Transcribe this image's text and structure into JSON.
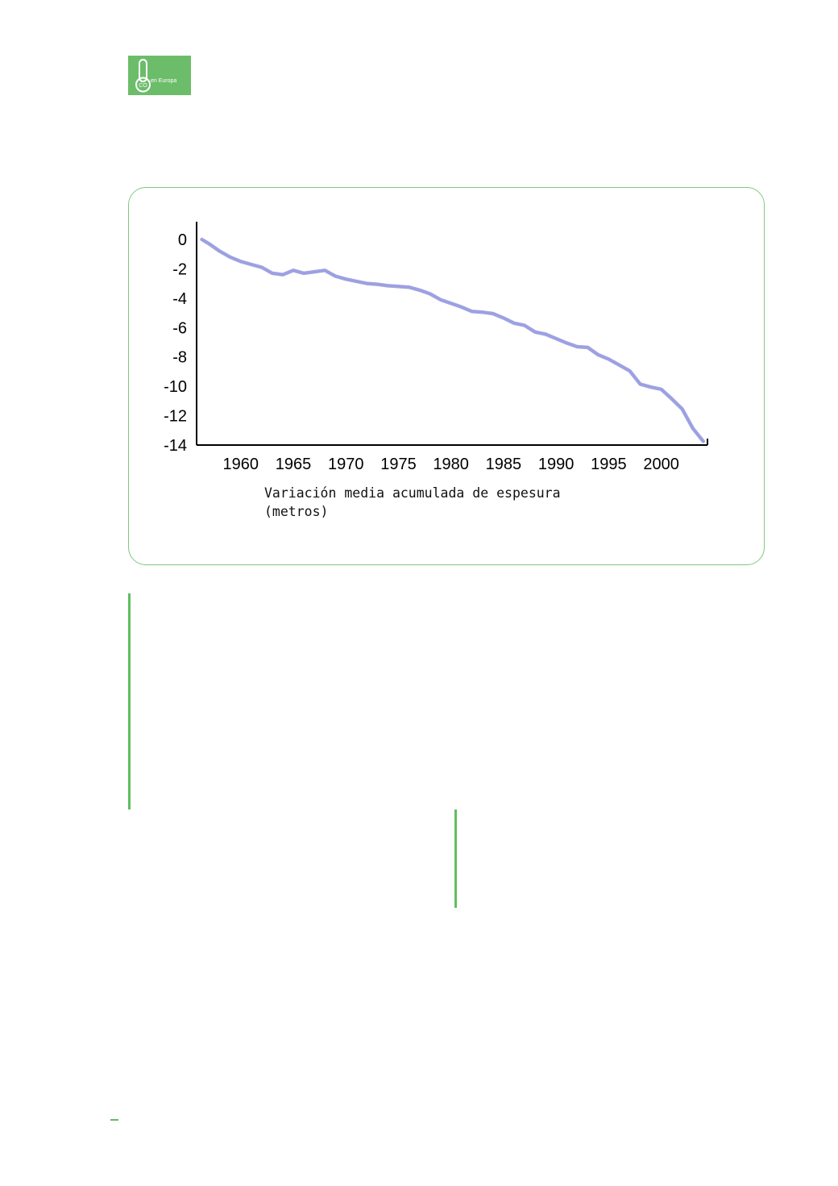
{
  "logo": {
    "text": "en Europa",
    "icon": "thermometer-icon",
    "color": "#6cbd6a"
  },
  "chart_data": {
    "type": "line",
    "xlabel": "Variación media acumulada de espesura\n(metros)",
    "ylabel": "",
    "x_ticks": [
      "1960",
      "1965",
      "1970",
      "1975",
      "1980",
      "1985",
      "1990",
      "1995",
      "2000"
    ],
    "y_ticks": [
      "0",
      "-2",
      "-4",
      "-6",
      "-8",
      "-10",
      "-12",
      "-14"
    ],
    "xlim": [
      1955.8,
      2004.4
    ],
    "ylim": [
      -14,
      0
    ],
    "grid": false,
    "legend": "none",
    "series": [
      {
        "color": "#9b9fe6",
        "x": [
          1956.3,
          1957,
          1958,
          1959,
          1960,
          1961,
          1962,
          1963,
          1964,
          1965,
          1966,
          1967,
          1968,
          1969,
          1970,
          1971,
          1972,
          1973,
          1974,
          1975,
          1976,
          1977,
          1978,
          1979,
          1980,
          1981,
          1982,
          1983,
          1984,
          1985,
          1986,
          1987,
          1988,
          1989,
          1990,
          1991,
          1992,
          1993,
          1994,
          1995,
          1996,
          1997,
          1998,
          1999,
          2000,
          2001,
          2002,
          2003,
          2004
        ],
        "y": [
          0,
          -0.3,
          -0.8,
          -1.2,
          -1.5,
          -1.7,
          -1.9,
          -2.3,
          -2.4,
          -2.1,
          -2.3,
          -2.2,
          -2.1,
          -2.5,
          -2.7,
          -2.85,
          -3.0,
          -3.05,
          -3.15,
          -3.2,
          -3.25,
          -3.45,
          -3.7,
          -4.1,
          -4.35,
          -4.6,
          -4.9,
          -4.95,
          -5.05,
          -5.35,
          -5.7,
          -5.85,
          -6.3,
          -6.45,
          -6.75,
          -7.05,
          -7.3,
          -7.35,
          -7.85,
          -8.15,
          -8.55,
          -8.95,
          -9.85,
          -10.05,
          -10.2,
          -10.85,
          -11.55,
          -12.85,
          -13.75
        ]
      }
    ]
  }
}
